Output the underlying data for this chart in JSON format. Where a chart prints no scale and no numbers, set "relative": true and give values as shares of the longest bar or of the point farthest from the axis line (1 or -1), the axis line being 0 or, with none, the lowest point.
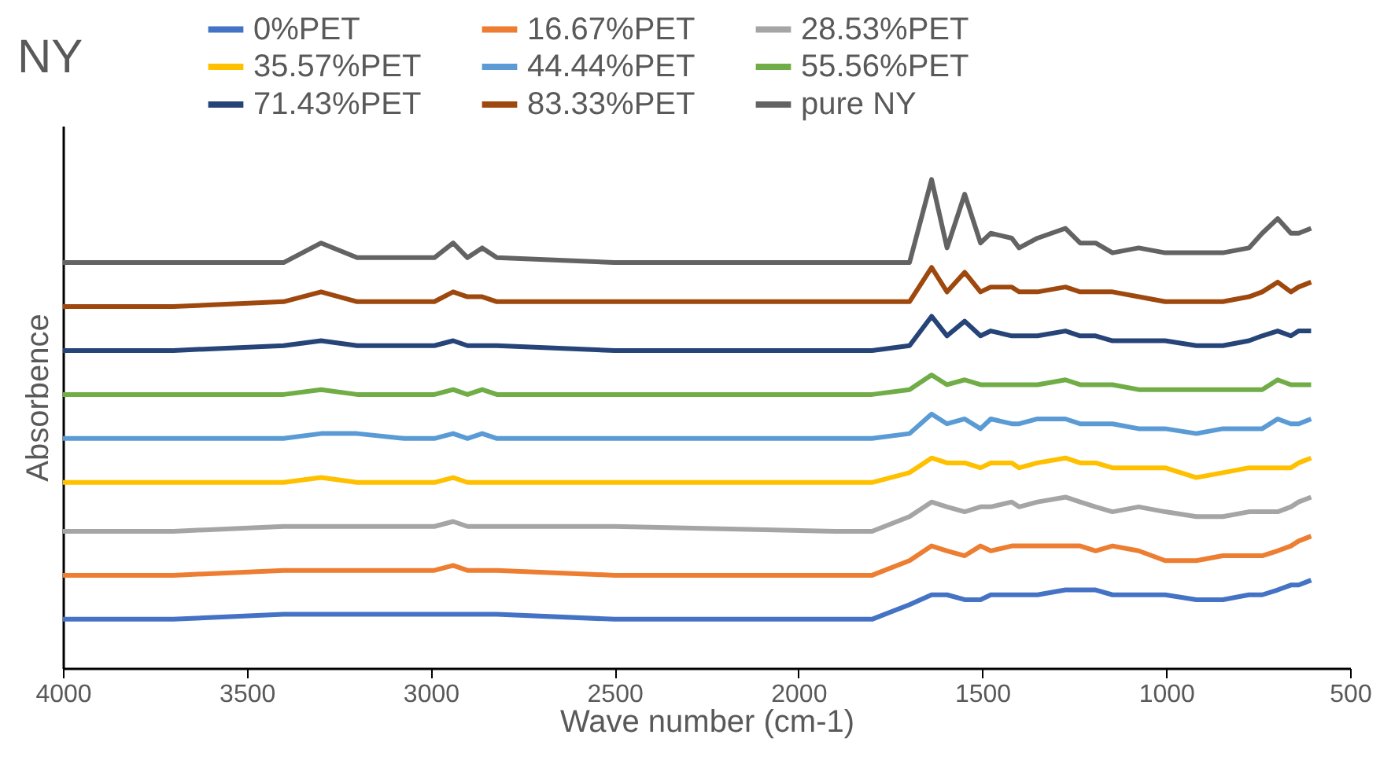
{
  "chart_data": {
    "type": "line",
    "title": "NY",
    "xlabel": "Wave number (cm-1)",
    "ylabel": "Absorbence",
    "relative": true,
    "legend": "top",
    "xlim": [
      4000,
      500
    ],
    "xticks": [
      4000,
      3500,
      3000,
      2500,
      2000,
      1500,
      1000,
      500
    ],
    "x": [
      4000,
      3700,
      3400,
      3298,
      3200,
      3072,
      2990,
      2939,
      2900,
      2860,
      2820,
      2500,
      1900,
      1800,
      1698,
      1638,
      1596,
      1548,
      1505,
      1477,
      1420,
      1400,
      1350,
      1274,
      1234,
      1192,
      1146,
      1075,
      1003,
      918,
      846,
      775,
      739,
      697,
      661,
      640,
      606
    ],
    "series": [
      {
        "name": "0%PET",
        "color": "#4472c4",
        "values": [
          0.1,
          0.1,
          0.11,
          0.11,
          0.11,
          0.11,
          0.11,
          0.11,
          0.11,
          0.11,
          0.11,
          0.1,
          0.1,
          0.1,
          0.13,
          0.15,
          0.15,
          0.14,
          0.14,
          0.15,
          0.15,
          0.15,
          0.15,
          0.16,
          0.16,
          0.16,
          0.15,
          0.15,
          0.15,
          0.14,
          0.14,
          0.15,
          0.15,
          0.16,
          0.17,
          0.17,
          0.18
        ]
      },
      {
        "name": "16.67%PET",
        "color": "#ed7d31",
        "values": [
          0.19,
          0.19,
          0.2,
          0.2,
          0.2,
          0.2,
          0.2,
          0.21,
          0.2,
          0.2,
          0.2,
          0.19,
          0.19,
          0.19,
          0.22,
          0.25,
          0.24,
          0.23,
          0.25,
          0.24,
          0.25,
          0.25,
          0.25,
          0.25,
          0.25,
          0.24,
          0.25,
          0.24,
          0.22,
          0.22,
          0.23,
          0.23,
          0.23,
          0.24,
          0.25,
          0.26,
          0.27
        ]
      },
      {
        "name": "28.53%PET",
        "color": "#a5a5a5",
        "values": [
          0.28,
          0.28,
          0.29,
          0.29,
          0.29,
          0.29,
          0.29,
          0.3,
          0.29,
          0.29,
          0.29,
          0.29,
          0.28,
          0.28,
          0.31,
          0.34,
          0.33,
          0.32,
          0.33,
          0.33,
          0.34,
          0.33,
          0.34,
          0.35,
          0.34,
          0.33,
          0.32,
          0.33,
          0.32,
          0.31,
          0.31,
          0.32,
          0.32,
          0.32,
          0.33,
          0.34,
          0.35
        ]
      },
      {
        "name": "35.57%PET",
        "color": "#ffc000",
        "values": [
          0.38,
          0.38,
          0.38,
          0.39,
          0.38,
          0.38,
          0.38,
          0.39,
          0.38,
          0.38,
          0.38,
          0.38,
          0.38,
          0.38,
          0.4,
          0.43,
          0.42,
          0.42,
          0.41,
          0.42,
          0.42,
          0.41,
          0.42,
          0.43,
          0.42,
          0.42,
          0.41,
          0.41,
          0.41,
          0.39,
          0.4,
          0.41,
          0.41,
          0.41,
          0.41,
          0.42,
          0.43
        ]
      },
      {
        "name": "44.44%PET",
        "color": "#5b9bd5",
        "values": [
          0.47,
          0.47,
          0.47,
          0.48,
          0.48,
          0.47,
          0.47,
          0.48,
          0.47,
          0.48,
          0.47,
          0.47,
          0.47,
          0.47,
          0.48,
          0.52,
          0.5,
          0.51,
          0.49,
          0.51,
          0.5,
          0.5,
          0.51,
          0.51,
          0.5,
          0.5,
          0.5,
          0.49,
          0.49,
          0.48,
          0.49,
          0.49,
          0.49,
          0.51,
          0.5,
          0.5,
          0.51
        ]
      },
      {
        "name": "55.56%PET",
        "color": "#70ad47",
        "values": [
          0.56,
          0.56,
          0.56,
          0.57,
          0.56,
          0.56,
          0.56,
          0.57,
          0.56,
          0.57,
          0.56,
          0.56,
          0.56,
          0.56,
          0.57,
          0.6,
          0.58,
          0.59,
          0.58,
          0.58,
          0.58,
          0.58,
          0.58,
          0.59,
          0.58,
          0.58,
          0.58,
          0.57,
          0.57,
          0.57,
          0.57,
          0.57,
          0.57,
          0.59,
          0.58,
          0.58,
          0.58
        ]
      },
      {
        "name": "71.43%PET",
        "color": "#264478",
        "values": [
          0.65,
          0.65,
          0.66,
          0.67,
          0.66,
          0.66,
          0.66,
          0.67,
          0.66,
          0.66,
          0.66,
          0.65,
          0.65,
          0.65,
          0.66,
          0.72,
          0.68,
          0.71,
          0.68,
          0.69,
          0.68,
          0.68,
          0.68,
          0.69,
          0.68,
          0.68,
          0.67,
          0.67,
          0.67,
          0.66,
          0.66,
          0.67,
          0.68,
          0.69,
          0.68,
          0.69,
          0.69
        ]
      },
      {
        "name": "83.33%PET",
        "color": "#9e480e",
        "values": [
          0.74,
          0.74,
          0.75,
          0.77,
          0.75,
          0.75,
          0.75,
          0.77,
          0.76,
          0.76,
          0.75,
          0.75,
          0.75,
          0.75,
          0.75,
          0.82,
          0.77,
          0.81,
          0.77,
          0.78,
          0.78,
          0.77,
          0.77,
          0.78,
          0.77,
          0.77,
          0.77,
          0.76,
          0.75,
          0.75,
          0.75,
          0.76,
          0.77,
          0.79,
          0.77,
          0.78,
          0.79
        ]
      },
      {
        "name": "pure NY",
        "color": "#636363",
        "values": [
          0.83,
          0.83,
          0.83,
          0.87,
          0.84,
          0.84,
          0.84,
          0.87,
          0.84,
          0.86,
          0.84,
          0.83,
          0.83,
          0.83,
          0.83,
          1.0,
          0.86,
          0.97,
          0.87,
          0.89,
          0.88,
          0.86,
          0.88,
          0.9,
          0.87,
          0.87,
          0.85,
          0.86,
          0.85,
          0.85,
          0.85,
          0.86,
          0.89,
          0.92,
          0.89,
          0.89,
          0.9
        ]
      }
    ]
  }
}
